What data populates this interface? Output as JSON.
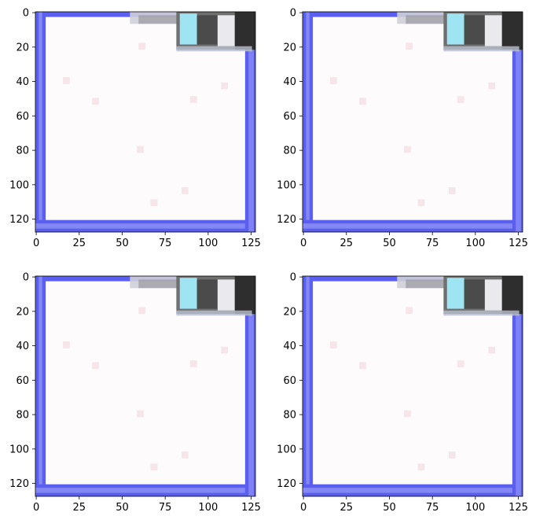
{
  "figure": {
    "panels": [
      {
        "id": "top-left",
        "x_ticks": [
          "0",
          "25",
          "50",
          "75",
          "100",
          "125"
        ],
        "y_ticks": [
          "0",
          "20",
          "40",
          "60",
          "80",
          "100",
          "120"
        ]
      },
      {
        "id": "top-right",
        "x_ticks": [
          "0",
          "25",
          "50",
          "75",
          "100",
          "125"
        ],
        "y_ticks": [
          "0",
          "20",
          "40",
          "60",
          "80",
          "100",
          "120"
        ]
      },
      {
        "id": "bottom-left",
        "x_ticks": [
          "0",
          "25",
          "50",
          "75",
          "100",
          "125"
        ],
        "y_ticks": [
          "0",
          "20",
          "40",
          "60",
          "80",
          "100",
          "120"
        ]
      },
      {
        "id": "bottom-right",
        "x_ticks": [
          "0",
          "25",
          "50",
          "75",
          "100",
          "125"
        ],
        "y_ticks": [
          "0",
          "20",
          "40",
          "60",
          "80",
          "100",
          "120"
        ]
      }
    ],
    "image_description_colors": {
      "frame_blue": "#5b5ff0",
      "frame_blue_light": "#8f92f5",
      "interior_white": "#fdfbfc",
      "device_gray": "#6f6f6f",
      "device_dark": "#2e2e2e",
      "device_cyan": "#9fe4f2",
      "faint_pink": "#f1d9dc"
    }
  }
}
